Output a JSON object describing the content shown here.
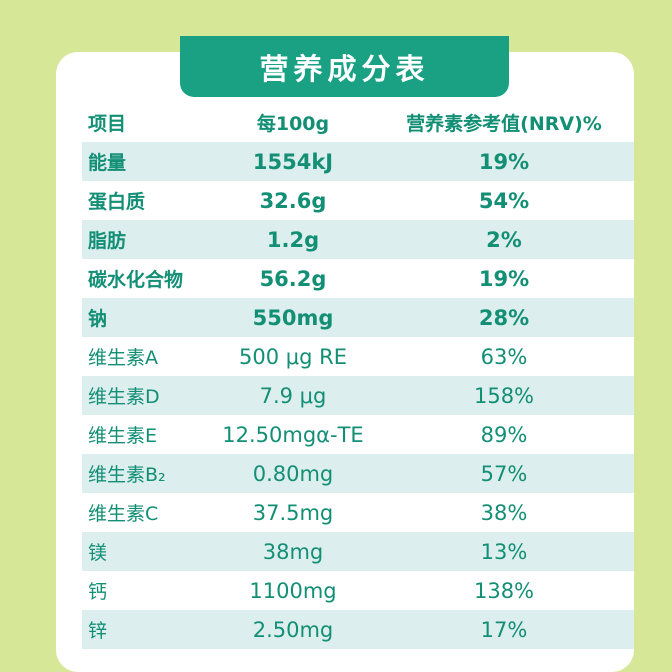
{
  "title": "营养成分表",
  "header": {
    "name": "项目",
    "value": "每100g",
    "nrv": "营养素参考值(NRV)%"
  },
  "rows": [
    {
      "name": "能量",
      "value": "1554kJ",
      "nrv": "19%"
    },
    {
      "name": "蛋白质",
      "value": "32.6g",
      "nrv": "54%"
    },
    {
      "name": "脂肪",
      "value": "1.2g",
      "nrv": "2%"
    },
    {
      "name": "碳水化合物",
      "value": "56.2g",
      "nrv": "19%"
    },
    {
      "name": "钠",
      "value": "550mg",
      "nrv": "28%"
    },
    {
      "name": "维生素A",
      "value": "500 μg RE",
      "nrv": "63%"
    },
    {
      "name": "维生素D",
      "value": "7.9 μg",
      "nrv": "158%"
    },
    {
      "name": "维生素E",
      "value": "12.50mgα-TE",
      "nrv": "89%"
    },
    {
      "name": "维生素B₂",
      "value": "0.80mg",
      "nrv": "57%"
    },
    {
      "name": "维生素C",
      "value": "37.5mg",
      "nrv": "38%"
    },
    {
      "name": "镁",
      "value": "38mg",
      "nrv": "13%"
    },
    {
      "name": "钙",
      "value": "1100mg",
      "nrv": "138%"
    },
    {
      "name": "锌",
      "value": "2.50mg",
      "nrv": "17%"
    }
  ]
}
